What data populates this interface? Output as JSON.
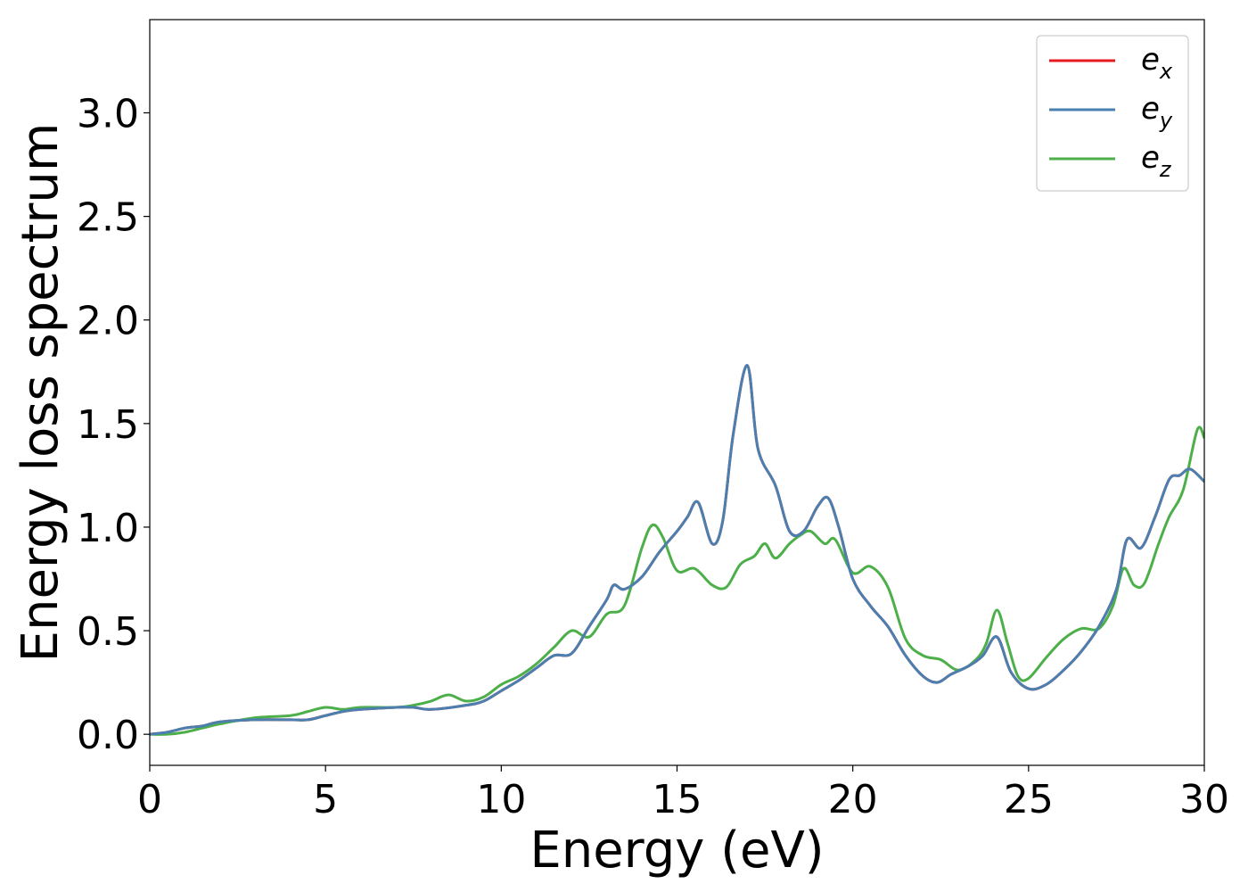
{
  "chart_data": {
    "type": "line",
    "xlabel": "Energy (eV)",
    "ylabel": "Energy loss spectrum",
    "xlim": [
      0,
      30
    ],
    "ylim": [
      -0.15,
      3.45
    ],
    "xticks": [
      0,
      5,
      10,
      15,
      20,
      25,
      30
    ],
    "yticks": [
      0.0,
      0.5,
      1.0,
      1.5,
      2.0,
      2.5,
      3.0
    ],
    "xtick_labels": [
      "0",
      "5",
      "10",
      "15",
      "20",
      "25",
      "30"
    ],
    "ytick_labels": [
      "0.0",
      "0.5",
      "1.0",
      "1.5",
      "2.0",
      "2.5",
      "3.0"
    ],
    "grid": false,
    "legend_position": "top-right",
    "series": [
      {
        "name": "e",
        "subscript": "x",
        "color": "#e41a1c",
        "x": [
          0,
          0.5,
          1.0,
          1.5,
          2.0,
          3.0,
          4.0,
          4.5,
          5.0,
          5.5,
          6.0,
          7.0,
          7.5,
          8.0,
          9.0,
          9.5,
          10.0,
          10.5,
          11.0,
          11.5,
          12.0,
          12.5,
          13.0,
          13.2,
          13.5,
          14.0,
          14.5,
          15.0,
          15.3,
          15.6,
          16.0,
          16.3,
          16.6,
          17.0,
          17.3,
          17.8,
          18.2,
          18.6,
          19.0,
          19.3,
          19.6,
          20.0,
          20.5,
          21.0,
          21.5,
          22.0,
          22.4,
          22.8,
          23.3,
          23.7,
          24.1,
          24.5,
          25.0,
          25.5,
          26.0,
          26.5,
          27.0,
          27.5,
          27.8,
          28.2,
          28.6,
          29.0,
          29.3,
          29.6,
          30.0
        ],
        "y": [
          0.0,
          0.01,
          0.03,
          0.04,
          0.06,
          0.07,
          0.07,
          0.07,
          0.09,
          0.11,
          0.12,
          0.13,
          0.13,
          0.12,
          0.14,
          0.16,
          0.21,
          0.26,
          0.32,
          0.38,
          0.39,
          0.52,
          0.65,
          0.72,
          0.7,
          0.76,
          0.88,
          0.98,
          1.05,
          1.12,
          0.92,
          1.03,
          1.45,
          1.78,
          1.38,
          1.2,
          0.98,
          0.98,
          1.1,
          1.14,
          1.0,
          0.75,
          0.62,
          0.52,
          0.38,
          0.28,
          0.25,
          0.29,
          0.33,
          0.38,
          0.47,
          0.3,
          0.22,
          0.24,
          0.31,
          0.4,
          0.52,
          0.7,
          0.94,
          0.9,
          1.05,
          1.23,
          1.25,
          1.28,
          1.22
        ]
      },
      {
        "name": "e",
        "subscript": "y",
        "color": "#4a7fb0",
        "x": [
          0,
          0.5,
          1.0,
          1.5,
          2.0,
          3.0,
          4.0,
          4.5,
          5.0,
          5.5,
          6.0,
          7.0,
          7.5,
          8.0,
          9.0,
          9.5,
          10.0,
          10.5,
          11.0,
          11.5,
          12.0,
          12.5,
          13.0,
          13.2,
          13.5,
          14.0,
          14.5,
          15.0,
          15.3,
          15.6,
          16.0,
          16.3,
          16.6,
          17.0,
          17.3,
          17.8,
          18.2,
          18.6,
          19.0,
          19.3,
          19.6,
          20.0,
          20.5,
          21.0,
          21.5,
          22.0,
          22.4,
          22.8,
          23.3,
          23.7,
          24.1,
          24.5,
          25.0,
          25.5,
          26.0,
          26.5,
          27.0,
          27.5,
          27.8,
          28.2,
          28.6,
          29.0,
          29.3,
          29.6,
          30.0
        ],
        "y": [
          0.0,
          0.01,
          0.03,
          0.04,
          0.06,
          0.07,
          0.07,
          0.07,
          0.09,
          0.11,
          0.12,
          0.13,
          0.13,
          0.12,
          0.14,
          0.16,
          0.21,
          0.26,
          0.32,
          0.38,
          0.39,
          0.52,
          0.65,
          0.72,
          0.7,
          0.76,
          0.88,
          0.98,
          1.05,
          1.12,
          0.92,
          1.03,
          1.45,
          1.78,
          1.38,
          1.2,
          0.98,
          0.98,
          1.1,
          1.14,
          1.0,
          0.75,
          0.62,
          0.52,
          0.38,
          0.28,
          0.25,
          0.29,
          0.33,
          0.38,
          0.47,
          0.3,
          0.22,
          0.24,
          0.31,
          0.4,
          0.52,
          0.7,
          0.94,
          0.9,
          1.05,
          1.23,
          1.25,
          1.28,
          1.22
        ]
      },
      {
        "name": "e",
        "subscript": "z",
        "color": "#4daf4a",
        "x": [
          0,
          0.5,
          1.0,
          1.5,
          2.0,
          3.0,
          4.0,
          4.5,
          5.0,
          5.5,
          6.0,
          7.0,
          7.5,
          8.0,
          8.5,
          9.0,
          9.5,
          10.0,
          10.5,
          11.0,
          11.5,
          12.0,
          12.5,
          13.0,
          13.5,
          14.0,
          14.3,
          14.6,
          15.0,
          15.5,
          16.0,
          16.4,
          16.8,
          17.2,
          17.5,
          17.8,
          18.2,
          18.5,
          18.8,
          19.2,
          19.5,
          20.0,
          20.5,
          21.0,
          21.5,
          22.0,
          22.5,
          23.0,
          23.5,
          23.8,
          24.1,
          24.4,
          24.7,
          25.0,
          25.5,
          26.0,
          26.5,
          27.0,
          27.4,
          27.7,
          28.0,
          28.3,
          28.7,
          29.0,
          29.4,
          29.8,
          30.0
        ],
        "y": [
          0.0,
          0.0,
          0.01,
          0.03,
          0.05,
          0.08,
          0.09,
          0.11,
          0.13,
          0.12,
          0.13,
          0.13,
          0.14,
          0.16,
          0.19,
          0.16,
          0.18,
          0.24,
          0.28,
          0.34,
          0.42,
          0.5,
          0.47,
          0.58,
          0.62,
          0.9,
          1.01,
          0.95,
          0.79,
          0.8,
          0.72,
          0.71,
          0.82,
          0.86,
          0.92,
          0.85,
          0.92,
          0.96,
          0.98,
          0.92,
          0.94,
          0.78,
          0.81,
          0.71,
          0.46,
          0.38,
          0.36,
          0.31,
          0.36,
          0.44,
          0.6,
          0.44,
          0.28,
          0.27,
          0.37,
          0.46,
          0.51,
          0.51,
          0.62,
          0.8,
          0.72,
          0.73,
          0.92,
          1.05,
          1.18,
          1.47,
          1.43
        ]
      }
    ]
  }
}
